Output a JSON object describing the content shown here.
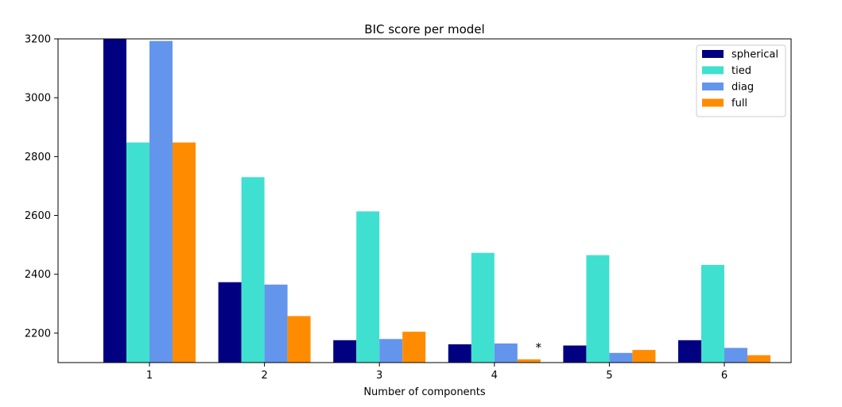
{
  "chart_data": {
    "type": "bar",
    "title": "BIC score per model",
    "xlabel": "Number of components",
    "ylabel": "",
    "categories": [
      "1",
      "2",
      "3",
      "4",
      "5",
      "6"
    ],
    "ylim": [
      2100,
      3200
    ],
    "yticks": [
      2200,
      2400,
      2600,
      2800,
      3000,
      3200
    ],
    "series": [
      {
        "name": "spherical",
        "color": "#000080",
        "values": [
          3200,
          2373,
          2176,
          2162,
          2158,
          2176
        ]
      },
      {
        "name": "tied",
        "color": "#40e0d0",
        "values": [
          2848,
          2730,
          2614,
          2473,
          2465,
          2432
        ]
      },
      {
        "name": "diag",
        "color": "#6495ed",
        "values": [
          3193,
          2365,
          2180,
          2165,
          2133,
          2150
        ]
      },
      {
        "name": "full",
        "color": "#ff8c00",
        "values": [
          2848,
          2258,
          2205,
          2111,
          2143,
          2125
        ]
      }
    ],
    "annotation": {
      "text": "*",
      "category": "4",
      "series": "full"
    },
    "legend_position": "top-right",
    "grid": false
  }
}
